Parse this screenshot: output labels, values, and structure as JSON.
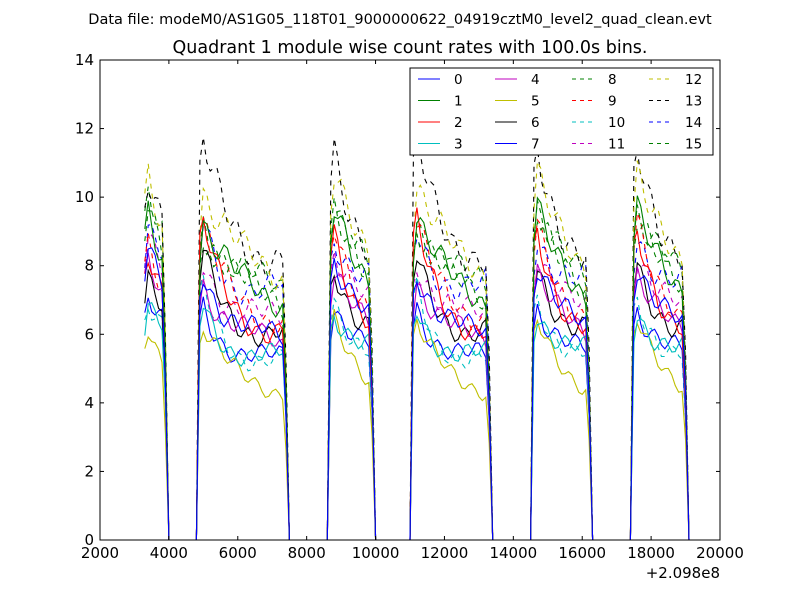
{
  "chart_data": {
    "type": "line",
    "suptitle": "Data file: modeM0/AS1G05_118T01_9000000622_04919cztM0_level2_quad_clean.evt",
    "title": "Quadrant 1 module wise count rates with 100.0s bins.",
    "xlabel": "",
    "ylabel": "",
    "x_offset_label": "+2.098e8",
    "xlim": [
      2000,
      20000
    ],
    "ylim": [
      0,
      14
    ],
    "xticks": [
      2000,
      4000,
      6000,
      8000,
      10000,
      12000,
      14000,
      16000,
      18000,
      20000
    ],
    "yticks": [
      0,
      2,
      4,
      6,
      8,
      10,
      12,
      14
    ],
    "grid": false,
    "legend_position": "top-right",
    "legend_columns": 4,
    "segments": [
      {
        "start": 3300,
        "end": 3900
      },
      {
        "start": 4900,
        "end": 7400
      },
      {
        "start": 8700,
        "end": 9900
      },
      {
        "start": 11100,
        "end": 13300
      },
      {
        "start": 14600,
        "end": 16200
      },
      {
        "start": 17500,
        "end": 19000
      }
    ],
    "series": [
      {
        "name": "0",
        "color": "#0000ff",
        "style": "solid",
        "level": 5.7,
        "peak": 8.6
      },
      {
        "name": "1",
        "color": "#008000",
        "style": "solid",
        "level": 7.0,
        "peak": 9.6
      },
      {
        "name": "2",
        "color": "#ff0000",
        "style": "solid",
        "level": 6.1,
        "peak": 9.3
      },
      {
        "name": "3",
        "color": "#00bfbf",
        "style": "solid",
        "level": 5.2,
        "peak": 7.2
      },
      {
        "name": "4",
        "color": "#bf00bf",
        "style": "solid",
        "level": 5.6,
        "peak": 8.1
      },
      {
        "name": "5",
        "color": "#bfbf00",
        "style": "solid",
        "level": 4.4,
        "peak": 6.4
      },
      {
        "name": "6",
        "color": "#000000",
        "style": "solid",
        "level": 6.0,
        "peak": 8.4
      },
      {
        "name": "7",
        "color": "#0000ff",
        "style": "solid",
        "level": 5.1,
        "peak": 7.3
      },
      {
        "name": "8",
        "color": "#008000",
        "style": "dashed",
        "level": 6.9,
        "peak": 9.7
      },
      {
        "name": "9",
        "color": "#ff0000",
        "style": "dashed",
        "level": 6.5,
        "peak": 9.2
      },
      {
        "name": "10",
        "color": "#00bfbf",
        "style": "dashed",
        "level": 5.1,
        "peak": 7.6
      },
      {
        "name": "11",
        "color": "#bf00bf",
        "style": "dashed",
        "level": 6.2,
        "peak": 8.9
      },
      {
        "name": "12",
        "color": "#bfbf00",
        "style": "dashed",
        "level": 7.8,
        "peak": 10.6
      },
      {
        "name": "13",
        "color": "#000000",
        "style": "dashed",
        "level": 8.3,
        "peak": 11.6
      },
      {
        "name": "14",
        "color": "#0000ff",
        "style": "dashed",
        "level": 7.1,
        "peak": 9.6
      },
      {
        "name": "15",
        "color": "#008000",
        "style": "dashed",
        "level": 7.2,
        "peak": 10.0
      }
    ]
  }
}
